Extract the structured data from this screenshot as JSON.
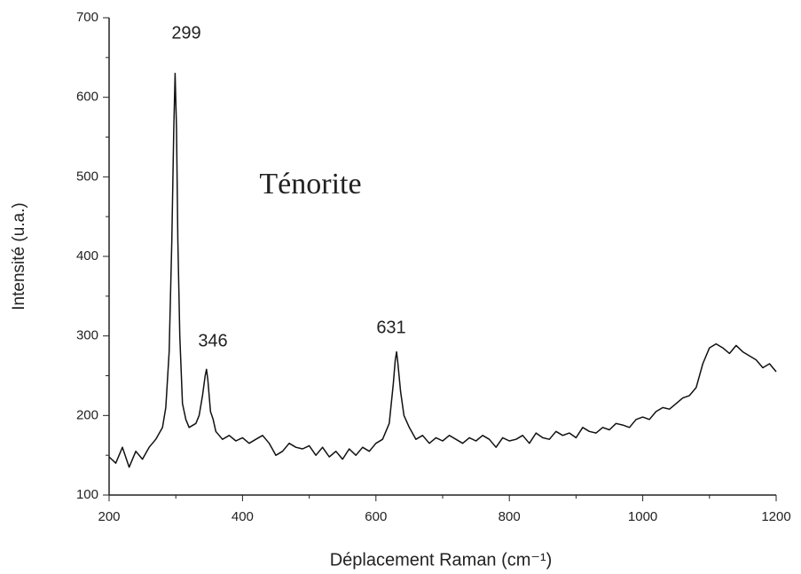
{
  "chart_data": {
    "type": "line",
    "x_label": "Déplacement Raman (cm⁻¹)",
    "y_label": "Intensité (u.a.)",
    "annotations": [
      "299",
      "346",
      "631",
      "Ténorite"
    ],
    "xlim": [
      200,
      1200
    ],
    "ylim": [
      100,
      700
    ],
    "xticks": [
      200,
      400,
      600,
      800,
      1000,
      1200
    ],
    "yticks": [
      100,
      200,
      300,
      400,
      500,
      600,
      700
    ],
    "x_minor_ticks": [
      300,
      500,
      700,
      900,
      1100
    ],
    "y_minor_ticks": [
      150,
      250,
      350,
      450,
      550,
      650
    ],
    "x": [
      200,
      210,
      220,
      230,
      240,
      250,
      260,
      270,
      280,
      285,
      290,
      294,
      297,
      299,
      301,
      303,
      306,
      310,
      315,
      320,
      330,
      335,
      340,
      344,
      346,
      348,
      352,
      356,
      360,
      370,
      380,
      390,
      400,
      410,
      420,
      430,
      440,
      450,
      460,
      470,
      480,
      490,
      500,
      510,
      520,
      530,
      540,
      550,
      560,
      570,
      580,
      590,
      600,
      610,
      620,
      626,
      629,
      631,
      633,
      637,
      642,
      650,
      660,
      670,
      680,
      690,
      700,
      710,
      720,
      730,
      740,
      750,
      760,
      770,
      780,
      790,
      800,
      810,
      820,
      830,
      840,
      850,
      860,
      870,
      880,
      890,
      900,
      910,
      920,
      930,
      940,
      950,
      960,
      970,
      980,
      990,
      1000,
      1010,
      1020,
      1030,
      1040,
      1050,
      1060,
      1070,
      1080,
      1090,
      1100,
      1110,
      1120,
      1130,
      1140,
      1150,
      1160,
      1170,
      1180,
      1190,
      1200
    ],
    "series": [
      {
        "color": "#111111",
        "values": [
          148,
          140,
          160,
          135,
          155,
          145,
          160,
          170,
          185,
          210,
          280,
          420,
          560,
          630,
          560,
          420,
          300,
          215,
          195,
          185,
          190,
          200,
          225,
          250,
          258,
          245,
          205,
          195,
          180,
          170,
          175,
          168,
          172,
          165,
          170,
          175,
          165,
          150,
          155,
          165,
          160,
          158,
          162,
          150,
          160,
          148,
          155,
          145,
          158,
          150,
          160,
          155,
          165,
          170,
          190,
          240,
          270,
          280,
          265,
          230,
          200,
          185,
          170,
          175,
          165,
          172,
          168,
          175,
          170,
          165,
          172,
          168,
          175,
          170,
          160,
          172,
          168,
          170,
          175,
          165,
          178,
          172,
          170,
          180,
          175,
          178,
          172,
          185,
          180,
          178,
          185,
          182,
          190,
          188,
          185,
          195,
          198,
          195,
          205,
          210,
          208,
          215,
          222,
          225,
          235,
          265,
          285,
          290,
          285,
          278,
          288,
          280,
          275,
          270,
          260,
          265,
          255
        ]
      }
    ]
  }
}
